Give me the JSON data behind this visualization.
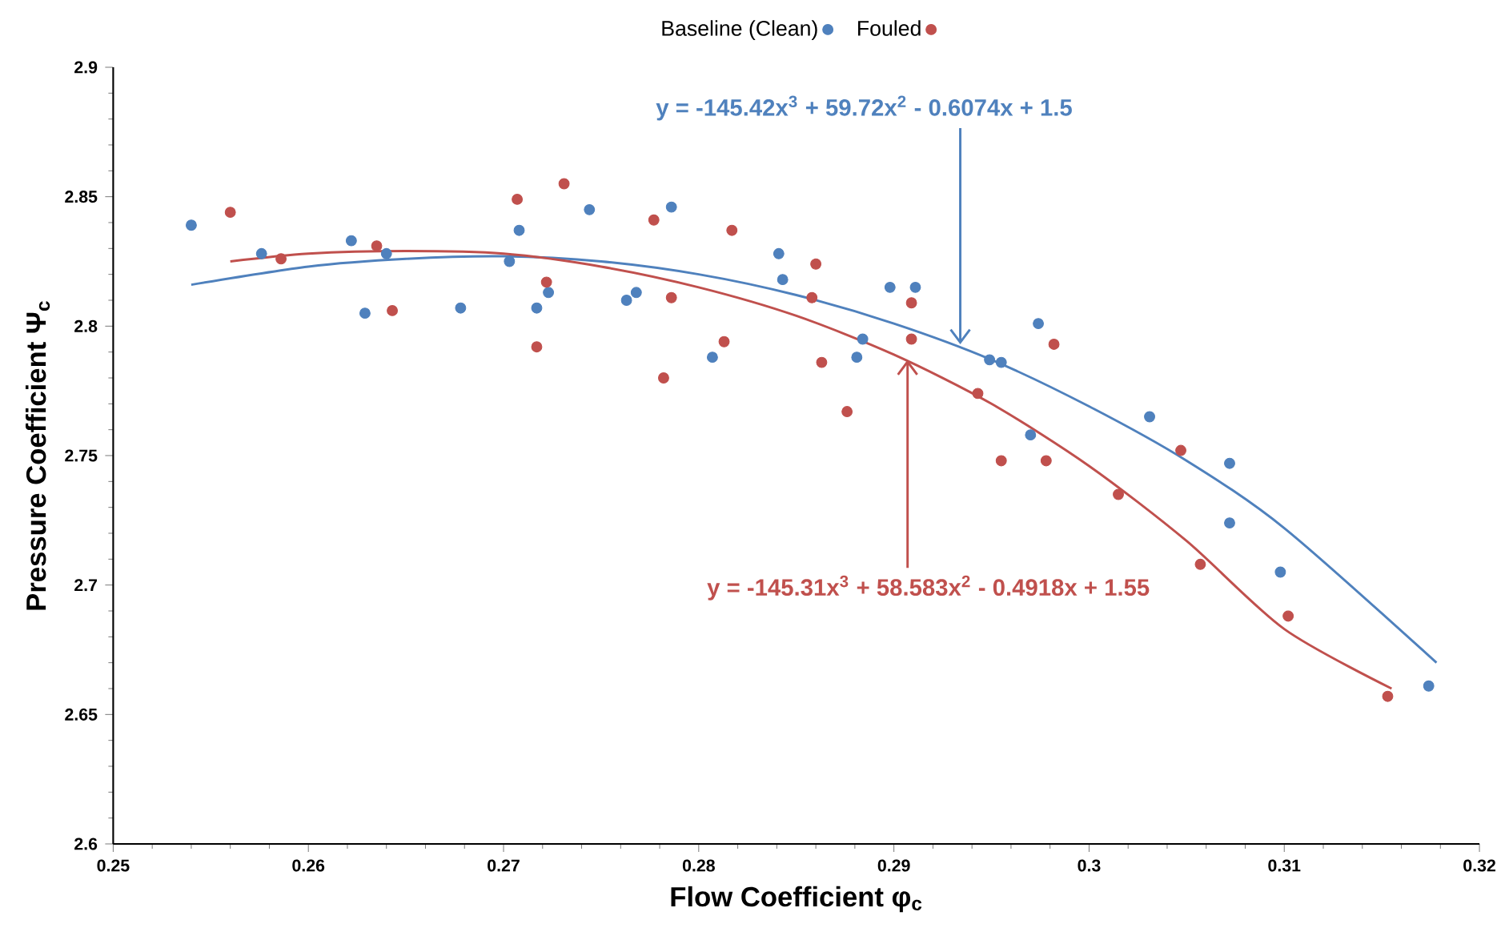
{
  "chart_data": {
    "type": "scatter",
    "xlabel": "Flow Coefficient φ$_{c}$",
    "ylabel": "Pressure Coefficient  Ψ$_{c}$",
    "xlim": [
      0.25,
      0.32
    ],
    "ylim": [
      2.6,
      2.9
    ],
    "xticks": [
      0.25,
      0.26,
      0.27,
      0.28,
      0.29,
      0.3,
      0.31,
      0.32
    ],
    "yticks": [
      2.6,
      2.65,
      2.7,
      2.75,
      2.8,
      2.85,
      2.9
    ],
    "grid": false,
    "legend": "top",
    "marker": "circle",
    "series": [
      {
        "name": "Baseline  (Clean)",
        "color": "#4f81bd",
        "x": [
          0.254,
          0.2576,
          0.2622,
          0.2629,
          0.264,
          0.2678,
          0.2703,
          0.2708,
          0.2717,
          0.2723,
          0.2744,
          0.2763,
          0.2768,
          0.2786,
          0.2807,
          0.2841,
          0.2843,
          0.2881,
          0.2884,
          0.2898,
          0.2911,
          0.2949,
          0.2955,
          0.297,
          0.2974,
          0.3031,
          0.3072,
          0.3072,
          0.3098,
          0.3174
        ],
        "values": [
          2.839,
          2.828,
          2.833,
          2.805,
          2.828,
          2.807,
          2.825,
          2.837,
          2.807,
          2.813,
          2.845,
          2.81,
          2.813,
          2.846,
          2.788,
          2.828,
          2.818,
          2.788,
          2.795,
          2.815,
          2.815,
          2.787,
          2.786,
          2.758,
          2.801,
          2.765,
          2.724,
          2.747,
          2.705,
          2.661
        ]
      },
      {
        "name": "Fouled",
        "color": "#c0504d",
        "x": [
          0.256,
          0.2586,
          0.2635,
          0.2643,
          0.2707,
          0.2717,
          0.2722,
          0.2731,
          0.2777,
          0.2782,
          0.2786,
          0.2813,
          0.2817,
          0.2858,
          0.286,
          0.2863,
          0.2876,
          0.2909,
          0.2909,
          0.2943,
          0.2955,
          0.2978,
          0.2982,
          0.3015,
          0.3047,
          0.3057,
          0.3102,
          0.3153
        ],
        "values": [
          2.844,
          2.826,
          2.831,
          2.806,
          2.849,
          2.792,
          2.817,
          2.855,
          2.841,
          2.78,
          2.811,
          2.794,
          2.837,
          2.811,
          2.824,
          2.786,
          2.767,
          2.795,
          2.809,
          2.774,
          2.748,
          2.748,
          2.793,
          2.735,
          2.752,
          2.708,
          2.688,
          2.657
        ]
      },
      {
        "type": "line",
        "marker": "none",
        "color": "#4f81bd",
        "x": [
          0.254,
          0.26,
          0.265,
          0.27,
          0.275,
          0.28,
          0.285,
          0.29,
          0.295,
          0.3,
          0.305,
          0.31,
          0.3178
        ],
        "values": [
          2.816,
          2.823,
          2.826,
          2.827,
          2.825,
          2.82,
          2.812,
          2.801,
          2.787,
          2.769,
          2.748,
          2.722,
          2.67
        ]
      },
      {
        "type": "line",
        "marker": "none",
        "color": "#c0504d",
        "x": [
          0.256,
          0.26,
          0.265,
          0.27,
          0.275,
          0.28,
          0.285,
          0.29,
          0.295,
          0.3,
          0.305,
          0.31,
          0.3155
        ],
        "values": [
          2.825,
          2.828,
          2.829,
          2.828,
          2.823,
          2.815,
          2.804,
          2.789,
          2.77,
          2.746,
          2.717,
          2.683,
          2.66
        ]
      }
    ],
    "annotations": [
      {
        "text": "y = -145.42x$^{3}$ + 59.72x$^{2}$ - 0.6074x + 1.5",
        "x": 0.2934,
        "y": 2.793
      },
      {
        "text": "y = -145.31x$^{3}$ + 58.583x$^{2}$ - 0.4918x + 1.55",
        "x": 0.2907,
        "y": 2.787
      }
    ]
  }
}
